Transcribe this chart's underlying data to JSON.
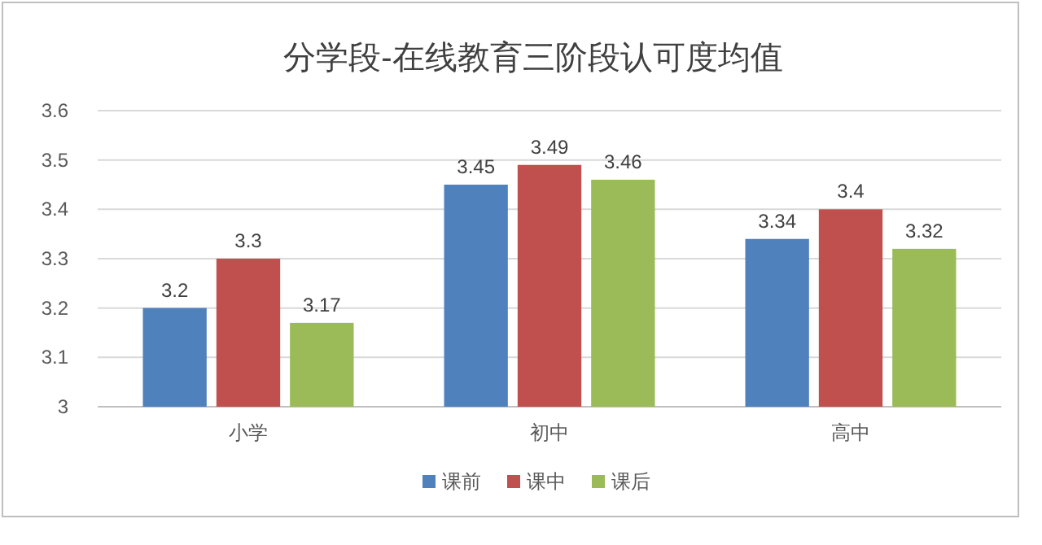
{
  "chart_data": {
    "type": "bar",
    "title": "分学段-在线教育三阶段认可度均值",
    "categories": [
      "小学",
      "初中",
      "高中"
    ],
    "series": [
      {
        "name": "课前",
        "color": "#4f81bd",
        "values": [
          3.2,
          3.45,
          3.34
        ]
      },
      {
        "name": "课中",
        "color": "#c0504d",
        "values": [
          3.3,
          3.49,
          3.4
        ]
      },
      {
        "name": "课后",
        "color": "#9bbb59",
        "values": [
          3.17,
          3.46,
          3.32
        ]
      }
    ],
    "ylim": [
      3,
      3.6
    ],
    "yticks": [
      3,
      3.1,
      3.2,
      3.3,
      3.4,
      3.5,
      3.6
    ],
    "grid": "y",
    "legend": "bottom",
    "data_labels": true
  }
}
